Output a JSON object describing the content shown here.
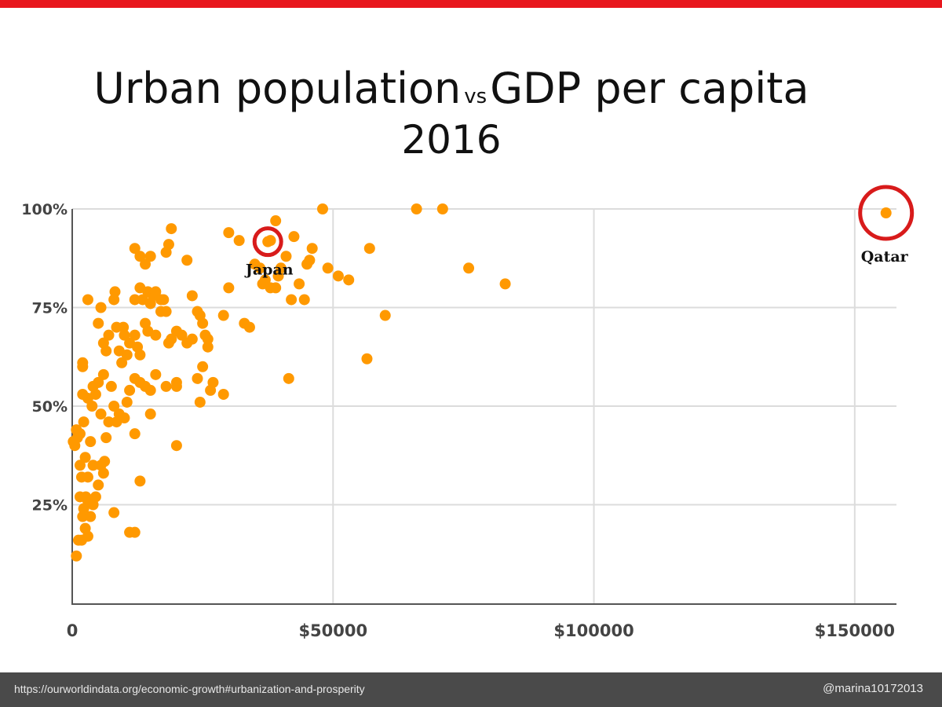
{
  "header": {
    "accent_color": "#e8171d"
  },
  "title": {
    "part1": "Urban population",
    "vs": "vs",
    "part2": "GDP per capita",
    "year": "2016"
  },
  "footer": {
    "source": "https://ourworldindata.org/economic-growth#urbanization-and-prosperity",
    "handle": "@marina10172013"
  },
  "chart_data": {
    "type": "scatter",
    "xlim": [
      0,
      158000
    ],
    "ylim": [
      0,
      100
    ],
    "grid": true,
    "x_ticks": [
      {
        "value": 0,
        "label": "0"
      },
      {
        "value": 50000,
        "label": "$50000"
      },
      {
        "value": 100000,
        "label": "$100000"
      },
      {
        "value": 150000,
        "label": "$150000"
      }
    ],
    "y_ticks": [
      {
        "value": 25,
        "label": "25%"
      },
      {
        "value": 50,
        "label": "50%"
      },
      {
        "value": 75,
        "label": "75%"
      },
      {
        "value": 100,
        "label": "100%"
      }
    ],
    "point_color": "#ff9900",
    "highlight_color": "#d81b1b",
    "annotations": [
      {
        "label": "Japan",
        "x": 37500,
        "y": 91.7
      },
      {
        "label": "Qatar",
        "x": 156000,
        "y": 99
      }
    ],
    "points": [
      [
        800,
        12
      ],
      [
        1200,
        16
      ],
      [
        1800,
        16
      ],
      [
        2500,
        19
      ],
      [
        3000,
        17
      ],
      [
        2000,
        22
      ],
      [
        3500,
        22
      ],
      [
        2200,
        24
      ],
      [
        4000,
        25
      ],
      [
        2600,
        27
      ],
      [
        3000,
        26
      ],
      [
        1500,
        27
      ],
      [
        4500,
        27
      ],
      [
        1800,
        32
      ],
      [
        3000,
        32
      ],
      [
        5000,
        30
      ],
      [
        5500,
        35
      ],
      [
        6000,
        33
      ],
      [
        6200,
        36
      ],
      [
        1500,
        35
      ],
      [
        4000,
        35
      ],
      [
        2500,
        37
      ],
      [
        3500,
        41
      ],
      [
        500,
        40
      ],
      [
        1000,
        42
      ],
      [
        1500,
        43
      ],
      [
        200,
        41
      ],
      [
        800,
        44
      ],
      [
        2200,
        46
      ],
      [
        3800,
        50
      ],
      [
        3000,
        52
      ],
      [
        2000,
        53
      ],
      [
        4000,
        55
      ],
      [
        4500,
        53
      ],
      [
        5000,
        56
      ],
      [
        6000,
        58
      ],
      [
        5500,
        48
      ],
      [
        7000,
        46
      ],
      [
        6500,
        42
      ],
      [
        8000,
        50
      ],
      [
        9000,
        48
      ],
      [
        8500,
        46
      ],
      [
        10000,
        47
      ],
      [
        10500,
        51
      ],
      [
        7500,
        55
      ],
      [
        11000,
        54
      ],
      [
        12000,
        57
      ],
      [
        13000,
        56
      ],
      [
        14000,
        55
      ],
      [
        15000,
        54
      ],
      [
        16000,
        58
      ],
      [
        18000,
        55
      ],
      [
        20000,
        56
      ],
      [
        22000,
        66
      ],
      [
        23000,
        67
      ],
      [
        24000,
        57
      ],
      [
        24500,
        51
      ],
      [
        25000,
        60
      ],
      [
        25500,
        68
      ],
      [
        26000,
        65
      ],
      [
        26500,
        54
      ],
      [
        27000,
        56
      ],
      [
        29000,
        53
      ],
      [
        2000,
        60
      ],
      [
        2000,
        61
      ],
      [
        5000,
        71
      ],
      [
        5500,
        75
      ],
      [
        3000,
        77
      ],
      [
        6000,
        66
      ],
      [
        6500,
        64
      ],
      [
        7000,
        68
      ],
      [
        8000,
        77
      ],
      [
        8200,
        79
      ],
      [
        8500,
        70
      ],
      [
        9000,
        64
      ],
      [
        9500,
        61
      ],
      [
        9800,
        70
      ],
      [
        10000,
        68
      ],
      [
        10500,
        63
      ],
      [
        11000,
        66
      ],
      [
        12000,
        68
      ],
      [
        12500,
        65
      ],
      [
        13000,
        63
      ],
      [
        14000,
        71
      ],
      [
        14500,
        69
      ],
      [
        15000,
        76
      ],
      [
        16000,
        68
      ],
      [
        17000,
        74
      ],
      [
        18000,
        74
      ],
      [
        18500,
        66
      ],
      [
        19000,
        67
      ],
      [
        12000,
        77
      ],
      [
        13000,
        80
      ],
      [
        13500,
        77
      ],
      [
        14500,
        79
      ],
      [
        15500,
        78
      ],
      [
        16000,
        79
      ],
      [
        17000,
        77
      ],
      [
        17500,
        77
      ],
      [
        20000,
        69
      ],
      [
        21000,
        68
      ],
      [
        23000,
        78
      ],
      [
        24000,
        74
      ],
      [
        24500,
        73
      ],
      [
        25000,
        71
      ],
      [
        26000,
        67
      ],
      [
        29000,
        73
      ],
      [
        30000,
        80
      ],
      [
        33000,
        71
      ],
      [
        34000,
        70
      ],
      [
        12000,
        90
      ],
      [
        13000,
        88
      ],
      [
        14000,
        86
      ],
      [
        15000,
        88
      ],
      [
        18000,
        89
      ],
      [
        18500,
        91
      ],
      [
        19000,
        95
      ],
      [
        22000,
        87
      ],
      [
        30000,
        94
      ],
      [
        32000,
        92
      ],
      [
        35000,
        86
      ],
      [
        36000,
        85
      ],
      [
        36500,
        81
      ],
      [
        37000,
        82
      ],
      [
        38000,
        80
      ],
      [
        39000,
        80
      ],
      [
        39500,
        83
      ],
      [
        40000,
        85
      ],
      [
        41000,
        88
      ],
      [
        42000,
        77
      ],
      [
        42500,
        93
      ],
      [
        43500,
        81
      ],
      [
        44500,
        77
      ],
      [
        45000,
        86
      ],
      [
        45500,
        87
      ],
      [
        46000,
        90
      ],
      [
        38000,
        92
      ],
      [
        39000,
        97
      ],
      [
        48000,
        100
      ],
      [
        49000,
        85
      ],
      [
        51000,
        83
      ],
      [
        53000,
        82
      ],
      [
        57000,
        90
      ],
      [
        56500,
        62
      ],
      [
        60000,
        73
      ],
      [
        66000,
        100
      ],
      [
        71000,
        100
      ],
      [
        76000,
        85
      ],
      [
        83000,
        81
      ],
      [
        41500,
        57
      ],
      [
        20000,
        40
      ],
      [
        13000,
        31
      ],
      [
        8000,
        23
      ],
      [
        11000,
        18
      ],
      [
        12000,
        18
      ],
      [
        12000,
        43
      ],
      [
        15000,
        48
      ],
      [
        20000,
        55
      ]
    ]
  }
}
